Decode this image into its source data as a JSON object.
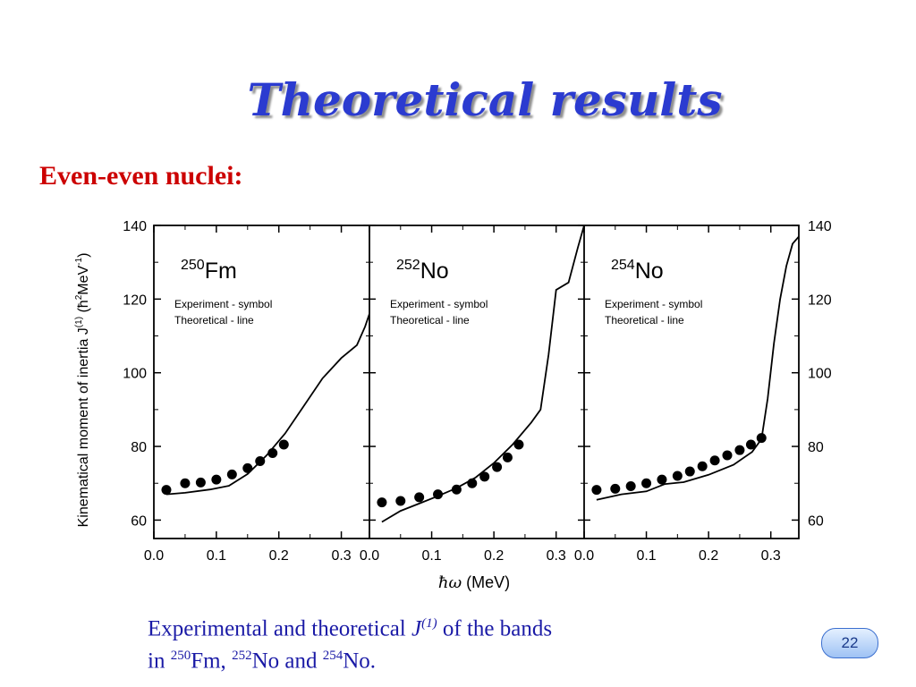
{
  "slide": {
    "title": "Theoretical results",
    "subtitle": "Even-even nuclei:",
    "caption": {
      "line1_pre": "Experimental and theoretical ",
      "symbol": "J",
      "symbol_sup": "(1)",
      "line1_post": " of the bands",
      "in_word": "in ",
      "mass_fm": "250",
      "fm": "Fm, ",
      "mass_no1": "252",
      "no_and": "No and ",
      "mass_no2": "254",
      "no_end": "No."
    },
    "page_number": "22"
  },
  "chart_data": {
    "type": "scatter",
    "ylabel_main": "Kinematical moment of inertia J",
    "ylabel_sup1": "(1)",
    "ylabel_unit_open": " (ħ",
    "ylabel_sup2": "2",
    "ylabel_unit_mid": "MeV",
    "ylabel_sup3": "-1",
    "ylabel_unit_close": ")",
    "xlabel_symbol": "ħω",
    "xlabel_unit": " (MeV)",
    "ylim": [
      55,
      140
    ],
    "y_ticks": [
      60,
      80,
      100,
      120,
      140
    ],
    "y_tick_labels": [
      "60",
      "80",
      "100",
      "120",
      "140"
    ],
    "panels": [
      {
        "mass": "250",
        "element": "Fm",
        "legend_exp": "Experiment - symbol",
        "legend_theo": "Theoretical - line",
        "xlim": [
          0.0,
          0.345
        ],
        "x_ticks": [
          0.0,
          0.1,
          0.2,
          0.3
        ],
        "x_tick_labels": [
          "0.0",
          "0.1",
          "0.2",
          "0.3"
        ],
        "experiment": [
          [
            0.02,
            68.2
          ],
          [
            0.05,
            70.0
          ],
          [
            0.075,
            70.2
          ],
          [
            0.1,
            71.0
          ],
          [
            0.125,
            72.4
          ],
          [
            0.15,
            74.1
          ],
          [
            0.17,
            76.0
          ],
          [
            0.19,
            78.2
          ],
          [
            0.208,
            80.5
          ]
        ],
        "theory": [
          [
            0.02,
            67.0
          ],
          [
            0.05,
            67.4
          ],
          [
            0.09,
            68.3
          ],
          [
            0.12,
            69.3
          ],
          [
            0.15,
            72.5
          ],
          [
            0.18,
            77.5
          ],
          [
            0.21,
            83.5
          ],
          [
            0.24,
            91.0
          ],
          [
            0.27,
            98.5
          ],
          [
            0.3,
            104.0
          ],
          [
            0.325,
            107.5
          ],
          [
            0.338,
            112.5
          ],
          [
            0.345,
            116.0
          ]
        ]
      },
      {
        "mass": "252",
        "element": "No",
        "legend_exp": "Experiment - symbol",
        "legend_theo": "Theoretical - line",
        "xlim": [
          0.0,
          0.345
        ],
        "x_ticks": [
          0.0,
          0.1,
          0.2,
          0.3
        ],
        "x_tick_labels": [
          "0.0",
          "0.1",
          "0.2",
          "0.3"
        ],
        "experiment": [
          [
            0.02,
            64.8
          ],
          [
            0.05,
            65.2
          ],
          [
            0.08,
            66.2
          ],
          [
            0.11,
            67.0
          ],
          [
            0.14,
            68.3
          ],
          [
            0.165,
            70.0
          ],
          [
            0.185,
            71.8
          ],
          [
            0.205,
            74.4
          ],
          [
            0.222,
            77.0
          ],
          [
            0.24,
            80.5
          ]
        ],
        "theory": [
          [
            0.02,
            59.5
          ],
          [
            0.05,
            62.5
          ],
          [
            0.08,
            64.5
          ],
          [
            0.11,
            66.5
          ],
          [
            0.14,
            68.7
          ],
          [
            0.17,
            71.5
          ],
          [
            0.2,
            75.5
          ],
          [
            0.23,
            80.5
          ],
          [
            0.26,
            86.5
          ],
          [
            0.275,
            90.0
          ],
          [
            0.288,
            105.0
          ],
          [
            0.3,
            122.5
          ],
          [
            0.32,
            124.5
          ],
          [
            0.335,
            134.0
          ],
          [
            0.345,
            140.0
          ]
        ]
      },
      {
        "mass": "254",
        "element": "No",
        "legend_exp": "Experiment - symbol",
        "legend_theo": "Theoretical - line",
        "xlim": [
          0.0,
          0.345
        ],
        "x_ticks": [
          0.0,
          0.1,
          0.2,
          0.3
        ],
        "x_tick_labels": [
          "0.0",
          "0.1",
          "0.2",
          "0.3"
        ],
        "experiment": [
          [
            0.02,
            68.2
          ],
          [
            0.05,
            68.5
          ],
          [
            0.075,
            69.2
          ],
          [
            0.1,
            70.0
          ],
          [
            0.125,
            71.0
          ],
          [
            0.15,
            72.0
          ],
          [
            0.17,
            73.2
          ],
          [
            0.19,
            74.6
          ],
          [
            0.21,
            76.2
          ],
          [
            0.23,
            77.6
          ],
          [
            0.25,
            79.0
          ],
          [
            0.268,
            80.5
          ],
          [
            0.285,
            82.3
          ]
        ],
        "theory": [
          [
            0.02,
            65.5
          ],
          [
            0.06,
            67.0
          ],
          [
            0.1,
            67.8
          ],
          [
            0.13,
            69.8
          ],
          [
            0.16,
            70.3
          ],
          [
            0.2,
            72.3
          ],
          [
            0.24,
            75.0
          ],
          [
            0.27,
            78.5
          ],
          [
            0.285,
            82.0
          ],
          [
            0.295,
            93.0
          ],
          [
            0.305,
            108.0
          ],
          [
            0.315,
            120.0
          ],
          [
            0.325,
            129.0
          ],
          [
            0.335,
            135.0
          ],
          [
            0.345,
            137.0
          ]
        ]
      }
    ]
  }
}
